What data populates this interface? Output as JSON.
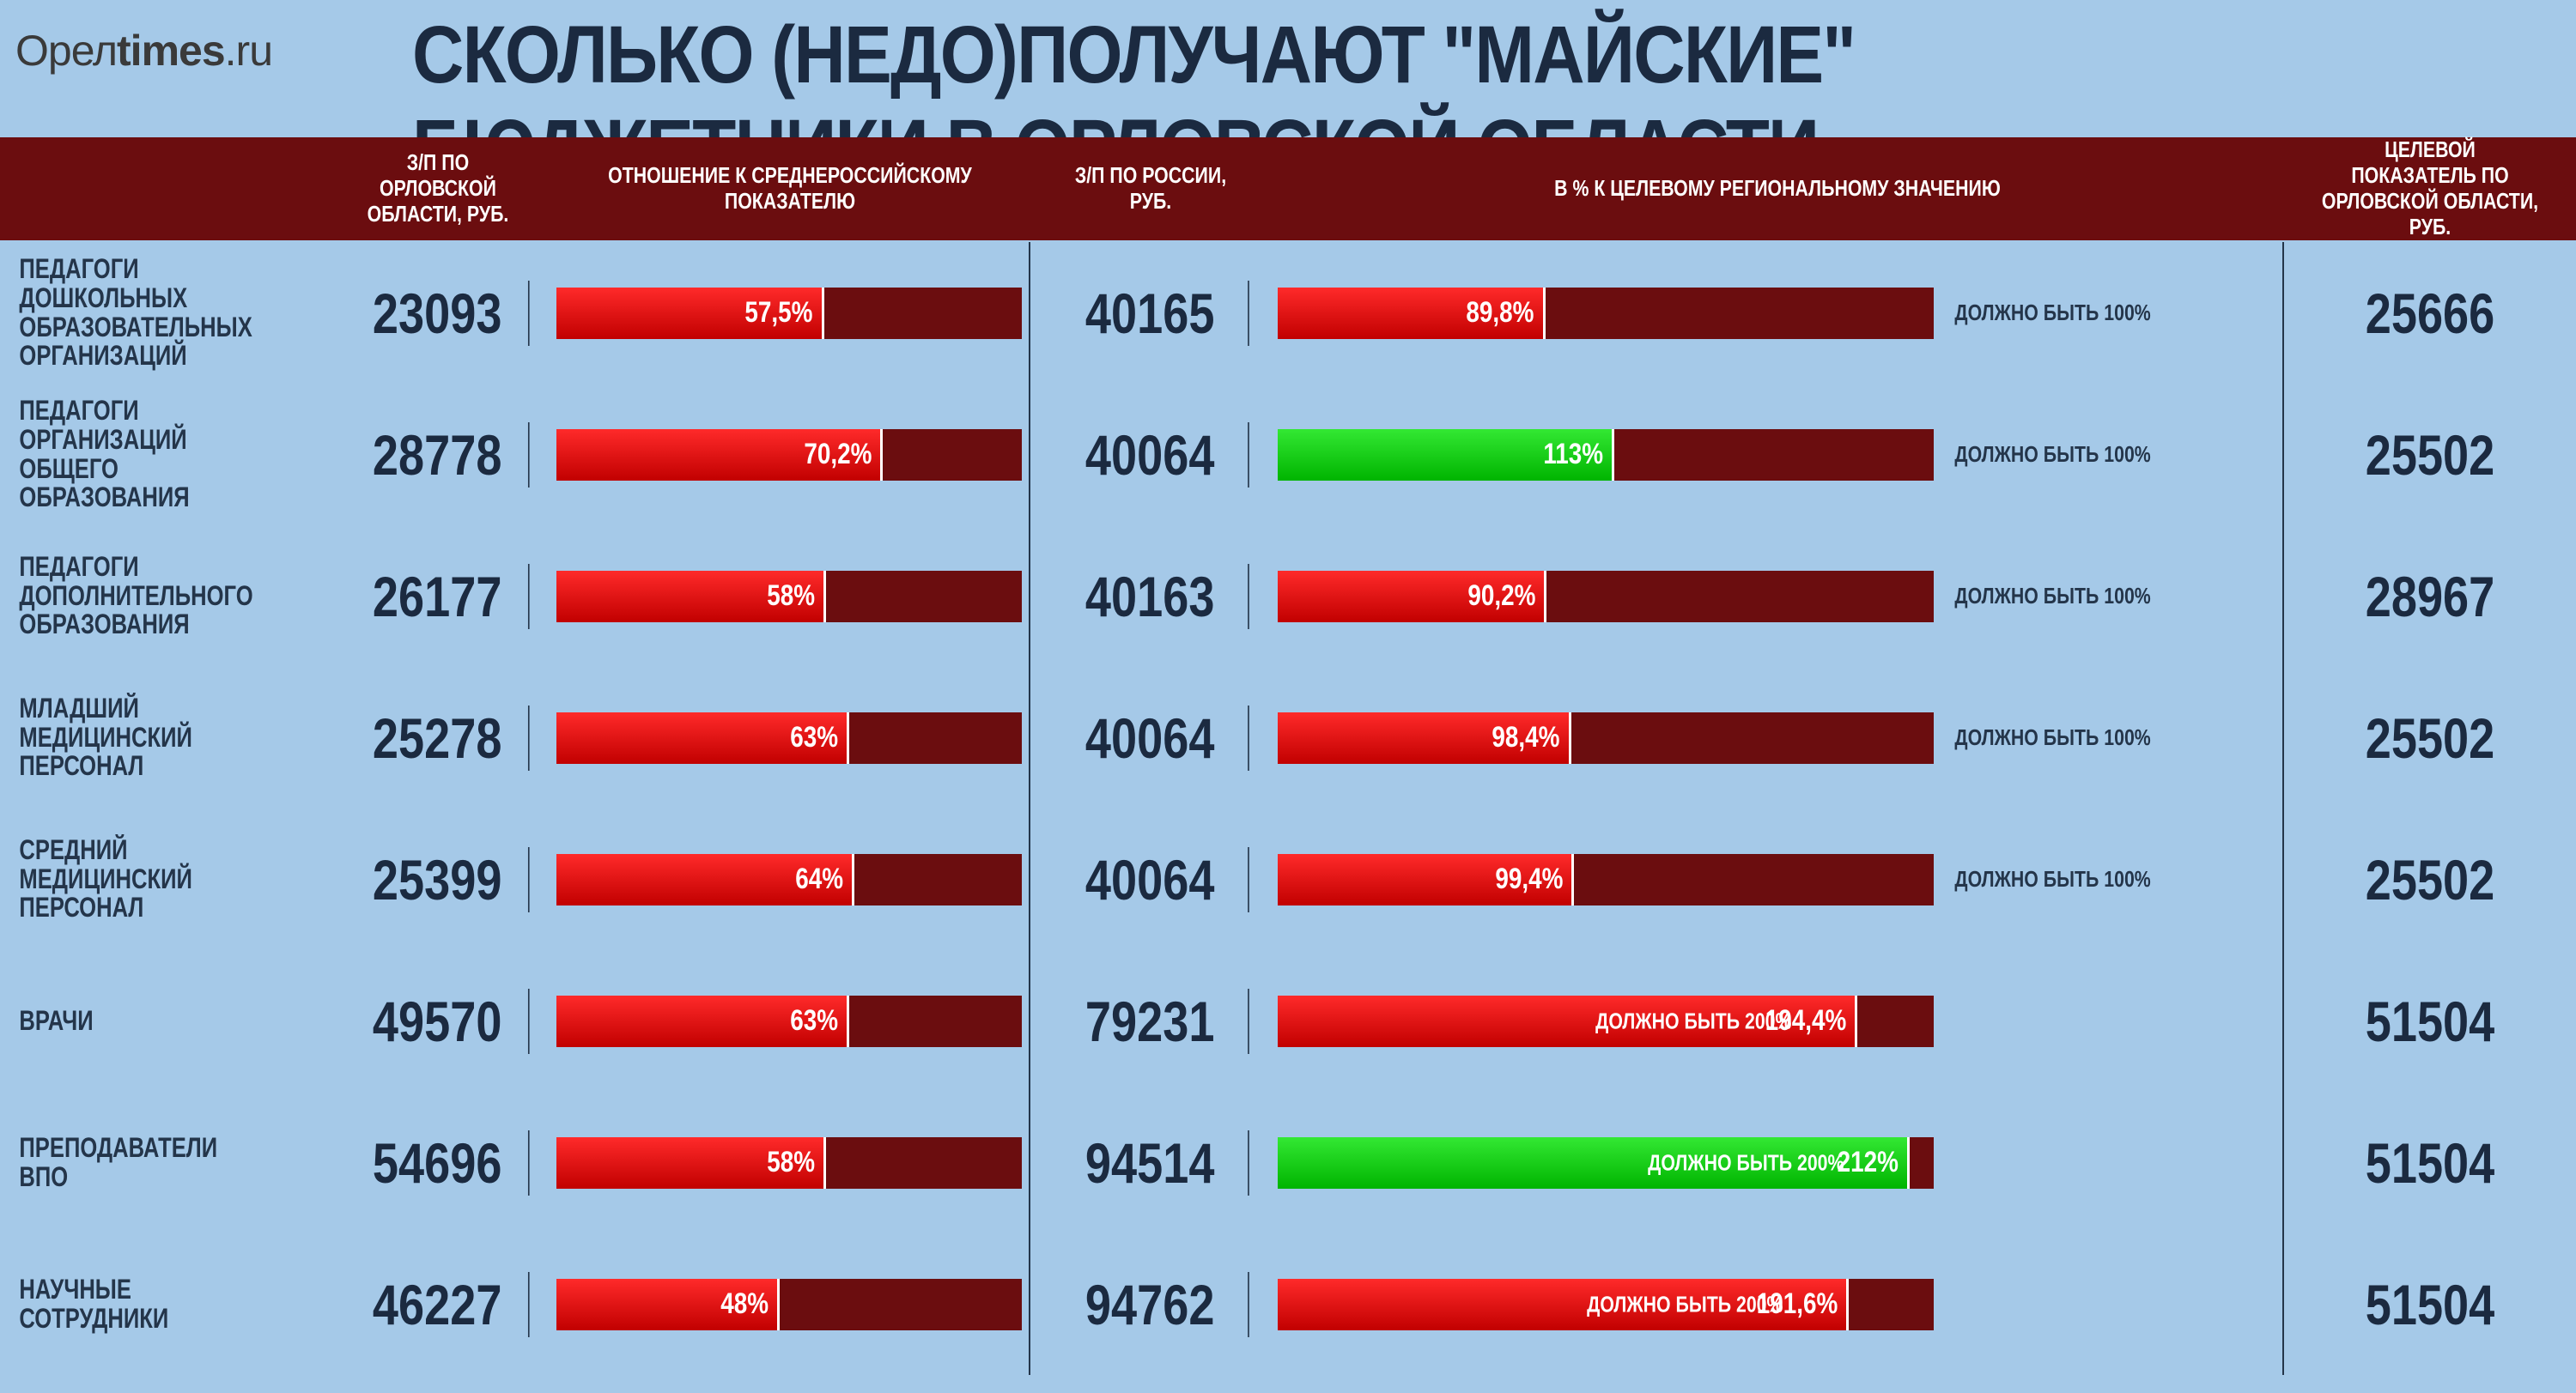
{
  "logo_html": "Орел<b>times</b>.ru",
  "title": "СКОЛЬКО (НЕДО)ПОЛУЧАЮТ \"МАЙСКИЕ\" БЮДЖЕТНИКИ В ОРЛОВСКОЙ ОБЛАСТИ",
  "colors": {
    "page_bg": "#a5c9e8",
    "header_band": "#6b0d0f",
    "bar_track": "#6b0d0f",
    "bar_red_from": "#ff2a2a",
    "bar_red_to": "#c10000",
    "bar_green_from": "#33e833",
    "bar_green_to": "#00b400",
    "text_dark": "#1b2a40",
    "divider": "#24354a"
  },
  "header": {
    "col1": "",
    "col2": "З/П ПО ОРЛОВСКОЙ ОБЛАСТИ, РУБ.",
    "col3": "ОТНОШЕНИЕ К СРЕДНЕРОССИЙСКОМУ ПОКАЗАТЕЛЮ",
    "col4": "З/П ПО РОССИИ, РУБ.",
    "col5": "В % К ЦЕЛЕВОМУ РЕГИОНАЛЬНОМУ ЗНАЧЕНИЮ",
    "col6": "",
    "col7": "ЦЕЛЕВОЙ ПОКАЗАТЕЛЬ ПО ОРЛОВСКОЙ ОБЛАСТИ, РУБ."
  },
  "ratio_bar": {
    "max_pct": 100
  },
  "regional_bar": {
    "max_pct": 220
  },
  "rows": [
    {
      "label": "ПЕДАГОГИ ДОШКОЛЬНЫХ ОБРАЗОВАТЕЛЬНЫХ ОРГАНИЗАЦИЙ",
      "orel_salary": "23093",
      "ratio_pct": 57.5,
      "ratio_text": "57,5%",
      "ratio_color": "red",
      "russia_salary": "40165",
      "regional_pct": 89.8,
      "regional_text": "89,8%",
      "regional_color": "red",
      "target_text": "ДОЛЖНО БЫТЬ 100%",
      "target_outside": true,
      "target_value": "25666"
    },
    {
      "label": "ПЕДАГОГИ ОРГАНИЗАЦИЙ ОБЩЕГО ОБРАЗОВАНИЯ",
      "orel_salary": "28778",
      "ratio_pct": 70.2,
      "ratio_text": "70,2%",
      "ratio_color": "red",
      "russia_salary": "40064",
      "regional_pct": 113,
      "regional_text": "113%",
      "regional_color": "green",
      "target_text": "ДОЛЖНО БЫТЬ 100%",
      "target_outside": true,
      "target_value": "25502"
    },
    {
      "label": "ПЕДАГОГИ ДОПОЛНИТЕЛЬНОГО ОБРАЗОВАНИЯ",
      "orel_salary": "26177",
      "ratio_pct": 58,
      "ratio_text": "58%",
      "ratio_color": "red",
      "russia_salary": "40163",
      "regional_pct": 90.2,
      "regional_text": "90,2%",
      "regional_color": "red",
      "target_text": "ДОЛЖНО БЫТЬ 100%",
      "target_outside": true,
      "target_value": "28967"
    },
    {
      "label": "МЛАДШИЙ МЕДИЦИНСКИЙ ПЕРСОНАЛ",
      "orel_salary": "25278",
      "ratio_pct": 63,
      "ratio_text": "63%",
      "ratio_color": "red",
      "russia_salary": "40064",
      "regional_pct": 98.4,
      "regional_text": "98,4%",
      "regional_color": "red",
      "target_text": "ДОЛЖНО БЫТЬ 100%",
      "target_outside": true,
      "target_value": "25502"
    },
    {
      "label": "СРЕДНИЙ МЕДИЦИНСКИЙ ПЕРСОНАЛ",
      "orel_salary": "25399",
      "ratio_pct": 64,
      "ratio_text": "64%",
      "ratio_color": "red",
      "russia_salary": "40064",
      "regional_pct": 99.4,
      "regional_text": "99,4%",
      "regional_color": "red",
      "target_text": "ДОЛЖНО БЫТЬ 100%",
      "target_outside": true,
      "target_value": "25502"
    },
    {
      "label": "ВРАЧИ",
      "orel_salary": "49570",
      "ratio_pct": 63,
      "ratio_text": "63%",
      "ratio_color": "red",
      "russia_salary": "79231",
      "regional_pct": 194.4,
      "regional_text": "194,4%",
      "regional_color": "red",
      "target_text": "ДОЛЖНО БЫТЬ 200%",
      "target_outside": false,
      "target_value": "51504"
    },
    {
      "label": "ПРЕПОДАВАТЕЛИ ВПО",
      "orel_salary": "54696",
      "ratio_pct": 58,
      "ratio_text": "58%",
      "ratio_color": "red",
      "russia_salary": "94514",
      "regional_pct": 212,
      "regional_text": "212%",
      "regional_color": "green",
      "target_text": "ДОЛЖНО БЫТЬ 200%",
      "target_outside": false,
      "target_value": "51504"
    },
    {
      "label": "НАУЧНЫЕ СОТРУДНИКИ",
      "orel_salary": "46227",
      "ratio_pct": 48,
      "ratio_text": "48%",
      "ratio_color": "red",
      "russia_salary": "94762",
      "regional_pct": 191.6,
      "regional_text": "191,6%",
      "regional_color": "red",
      "target_text": "ДОЛЖНО БЫТЬ 200%",
      "target_outside": false,
      "target_value": "51504"
    }
  ]
}
